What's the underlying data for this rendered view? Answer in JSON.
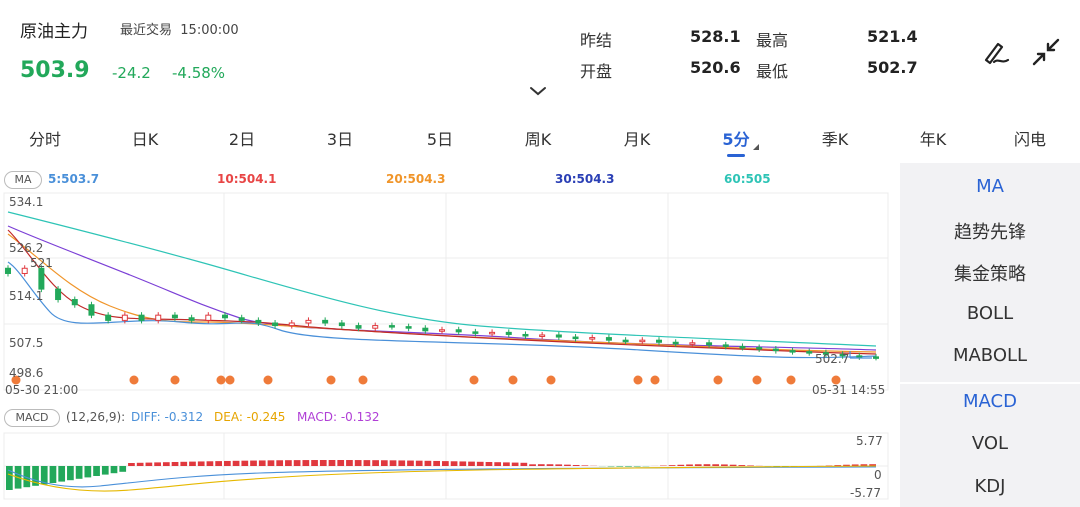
{
  "header": {
    "title": "原油主力",
    "recent_label": "最近交易",
    "recent_time": "15:00:00",
    "price": "503.9",
    "change": "-24.2",
    "change_pct": "-4.58%"
  },
  "stats": {
    "prev_settle_label": "昨结",
    "prev_settle": "528.1",
    "high_label": "最高",
    "high": "521.4",
    "open_label": "开盘",
    "open": "520.6",
    "low_label": "最低",
    "low": "502.7"
  },
  "tools": {
    "draw_icon": "pen-draw-icon",
    "collapse_icon": "collapse-arrows-icon",
    "expand_chevron": "chevron-down-icon"
  },
  "tabs": [
    "分时",
    "日K",
    "2日",
    "3日",
    "5日",
    "周K",
    "月K",
    "5分",
    "季K",
    "年K",
    "闪电"
  ],
  "active_tab": "5分",
  "ma_legend": {
    "tag": "MA",
    "ma5": "5:503.7",
    "ma10": "10:504.1",
    "ma20": "20:504.3",
    "ma30": "30:504.3",
    "ma60": "60:505"
  },
  "main_axis": {
    "top": "534.1",
    "mid1": "526.2",
    "mid2": "521",
    "mid3": "514.1",
    "mid4": "507.5",
    "bottom": "498.6",
    "low_marker": "502.7",
    "start_time": "05-30 21:00",
    "end_time": "05-31 14:55"
  },
  "macd_legend": {
    "tag": "MACD",
    "params": "(12,26,9):",
    "diff": "DIFF: -0.312",
    "dea": "DEA: -0.245",
    "macd": "MACD: -0.132"
  },
  "macd_axis": {
    "top": "5.77",
    "zero": "0",
    "bottom": "-5.77"
  },
  "side_panel": {
    "main_items": [
      "MA",
      "趋势先锋",
      "集金策略",
      "BOLL",
      "MABOLL"
    ],
    "sub_items": [
      "MACD",
      "VOL",
      "KDJ"
    ],
    "active_main": "MA",
    "active_sub": "MACD"
  },
  "colors": {
    "up": "#e0383e",
    "down": "#22a85a",
    "accent": "#2a63d4",
    "ma5": "#4a90d9",
    "ma10": "#e84545",
    "ma20": "#f0952a",
    "ma30": "#2a3fb5",
    "ma60": "#2ec4b6"
  },
  "chart_data": {
    "type": "candlestick",
    "ylim": [
      498.6,
      534.1
    ],
    "candles_approx_close": [
      520,
      521,
      517,
      515,
      514,
      512,
      511,
      512,
      511,
      512,
      511.5,
      511,
      512,
      511.5,
      511,
      510.5,
      510,
      510.5,
      511,
      510.5,
      510,
      509.5,
      510,
      509.8,
      509.5,
      509,
      509.2,
      508.8,
      508.5,
      508.7,
      508.3,
      508,
      508.2,
      507.8,
      507.5,
      507.7,
      507.2,
      507,
      507.2,
      506.8,
      506.5,
      506.7,
      506.3,
      506,
      505.8,
      505.5,
      505.2,
      505,
      504.8,
      504.5,
      504.2,
      504,
      503.9
    ],
    "macd": {
      "ylim": [
        -5.77,
        5.77
      ],
      "diff": -0.312,
      "dea": -0.245,
      "macd": -0.132
    }
  }
}
